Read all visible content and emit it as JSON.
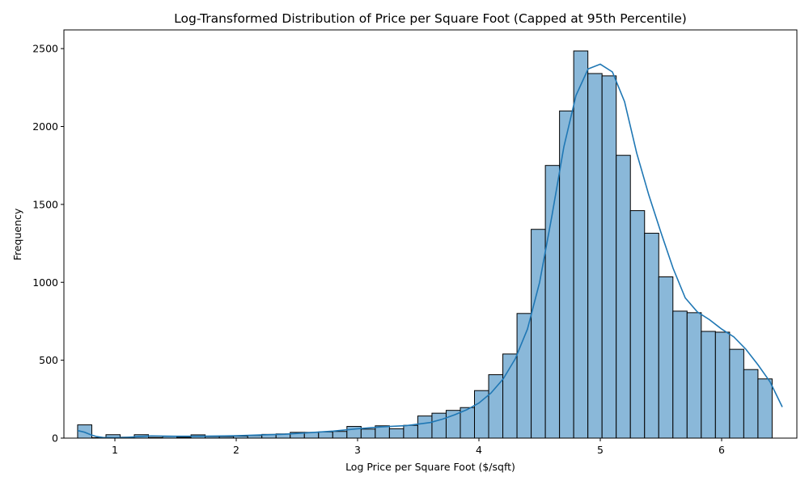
{
  "chart_data": {
    "type": "bar",
    "title": "Log-Transformed Distribution of Price per Square Foot (Capped at 95th Percentile)",
    "xlabel": "Log Price per Square Foot ($/sqft)",
    "ylabel": "Frequency",
    "xlim": [
      0.58,
      6.62
    ],
    "ylim": [
      0,
      2620
    ],
    "xticks": [
      "1",
      "2",
      "3",
      "4",
      "5",
      "6"
    ],
    "yticks": [
      "0",
      "500",
      "1000",
      "1500",
      "2000",
      "2500"
    ],
    "bin_start": 0.693,
    "bin_width": 0.1168,
    "counts": [
      85,
      3,
      22,
      6,
      22,
      4,
      11,
      5,
      21,
      10,
      10,
      13,
      17,
      24,
      27,
      37,
      37,
      40,
      43,
      75,
      58,
      79,
      60,
      82,
      142,
      160,
      178,
      196,
      305,
      407,
      540,
      800,
      1340,
      1750,
      2100,
      2485,
      2340,
      2325,
      1815,
      1460,
      1315,
      1035,
      815,
      805,
      685,
      680,
      570,
      440,
      380
    ],
    "kde": {
      "x": [
        0.693,
        0.75,
        0.8,
        0.85,
        0.9,
        1.0,
        1.1,
        1.2,
        1.3,
        1.5,
        1.7,
        1.9,
        2.0,
        2.2,
        2.4,
        2.6,
        2.8,
        3.0,
        3.2,
        3.4,
        3.6,
        3.7,
        3.8,
        3.9,
        4.0,
        4.1,
        4.2,
        4.3,
        4.4,
        4.5,
        4.6,
        4.7,
        4.8,
        4.9,
        5.0,
        5.1,
        5.2,
        5.3,
        5.4,
        5.5,
        5.6,
        5.7,
        5.8,
        5.9,
        6.0,
        6.1,
        6.2,
        6.3,
        6.4,
        6.5
      ],
      "y": [
        48,
        38,
        22,
        10,
        4,
        2,
        5,
        10,
        14,
        12,
        12,
        14,
        15,
        20,
        25,
        35,
        45,
        60,
        72,
        80,
        100,
        122,
        150,
        182,
        225,
        290,
        380,
        510,
        700,
        1000,
        1420,
        1870,
        2200,
        2370,
        2400,
        2350,
        2160,
        1830,
        1560,
        1320,
        1090,
        900,
        810,
        760,
        700,
        650,
        570,
        470,
        360,
        200
      ]
    },
    "bar_color": "#8ab8d9",
    "bar_edge": "#000000",
    "kde_color": "#1f77b4",
    "grid": false,
    "legend": "none"
  }
}
